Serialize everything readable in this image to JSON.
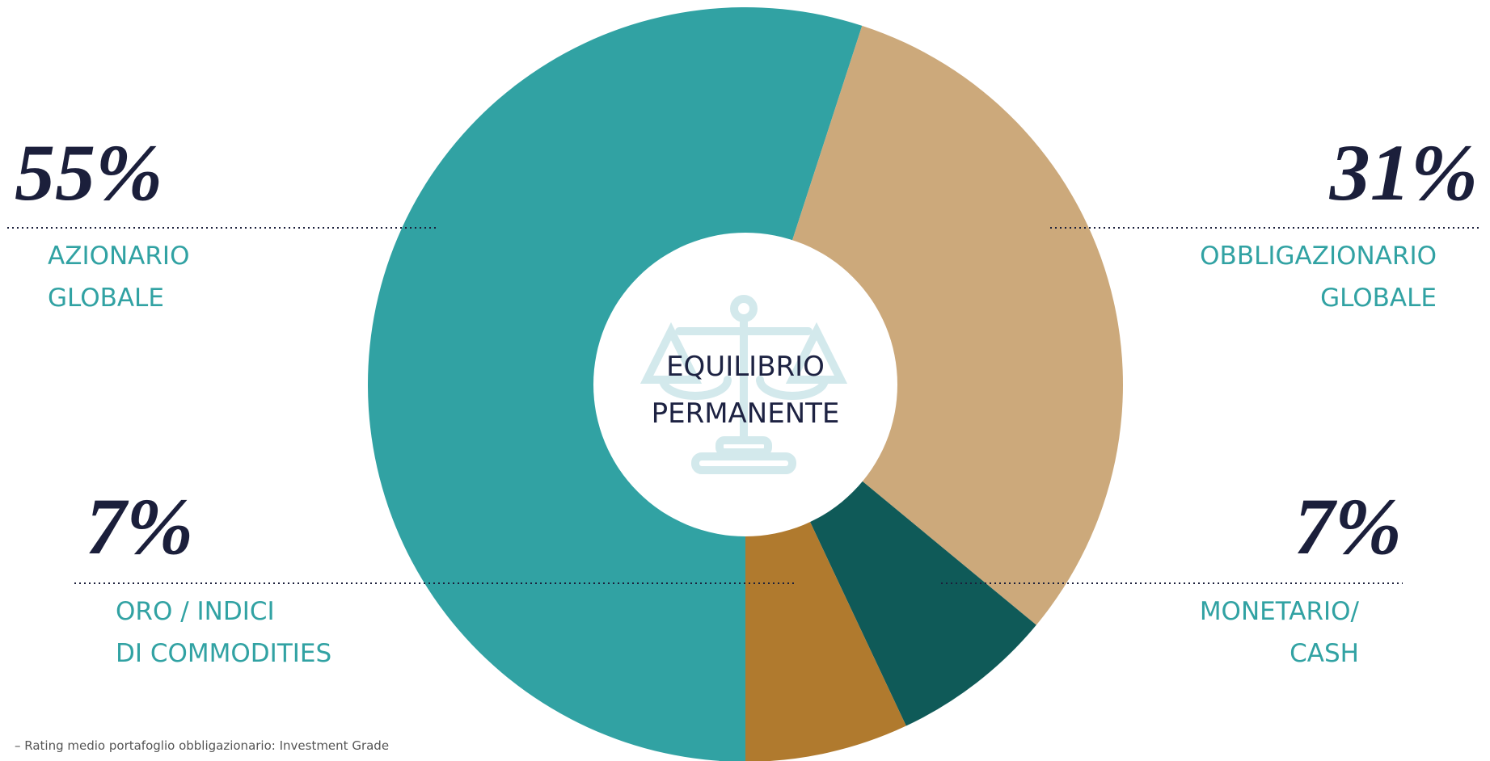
{
  "chart_data": {
    "type": "donut",
    "center_label": [
      "EQUILIBRIO",
      "PERMANENTE"
    ],
    "categories": [
      [
        "AZIONARIO",
        "GLOBALE"
      ],
      [
        "OBBLIGAZIONARIO",
        "GLOBALE"
      ],
      [
        "MONETARIO/",
        "CASH"
      ],
      [
        "ORO / INDICI",
        "DI COMMODITIES"
      ]
    ],
    "values": [
      55,
      31,
      7,
      7
    ],
    "value_labels": [
      "55%",
      "31%",
      "7%",
      "7%"
    ],
    "colors": [
      "#31a2a3",
      "#cca97b",
      "#0f5a58",
      "#b07a2e"
    ],
    "footnote": "– Rating medio portafoglio obbligazionario: Investment Grade"
  }
}
